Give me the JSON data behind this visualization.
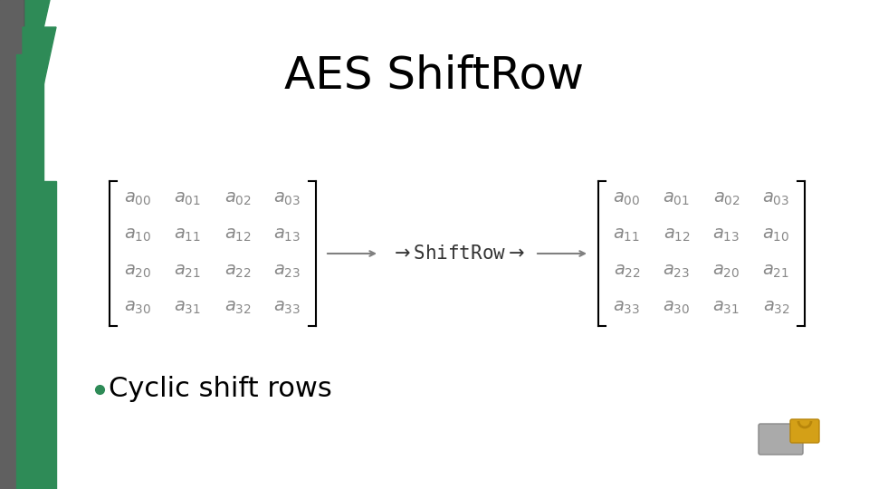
{
  "title": "AES ShiftRow",
  "title_fontsize": 36,
  "title_color": "#000000",
  "bg_color": "#ffffff",
  "left_matrix": [
    [
      "a_{00}",
      "a_{01}",
      "a_{02}",
      "a_{03}"
    ],
    [
      "a_{10}",
      "a_{11}",
      "a_{12}",
      "a_{13}"
    ],
    [
      "a_{20}",
      "a_{21}",
      "a_{22}",
      "a_{23}"
    ],
    [
      "a_{30}",
      "a_{31}",
      "a_{32}",
      "a_{33}"
    ]
  ],
  "right_matrix": [
    [
      "a_{00}",
      "a_{01}",
      "a_{02}",
      "a_{03}"
    ],
    [
      "a_{11}",
      "a_{12}",
      "a_{13}",
      "a_{10}"
    ],
    [
      "a_{22}",
      "a_{23}",
      "a_{20}",
      "a_{21}"
    ],
    [
      "a_{33}",
      "a_{30}",
      "a_{31}",
      "a_{32}"
    ]
  ],
  "arrow_label": "\\rightarrow \\mathtt{ShiftRow} \\rightarrow",
  "bullet_text": "Cyclic shift rows",
  "bullet_fontsize": 22,
  "matrix_fontsize": 16,
  "left_bar_color1": "#2e8b57",
  "left_bar_color2": "#696969",
  "left_stripe_color": "#2e8b57"
}
